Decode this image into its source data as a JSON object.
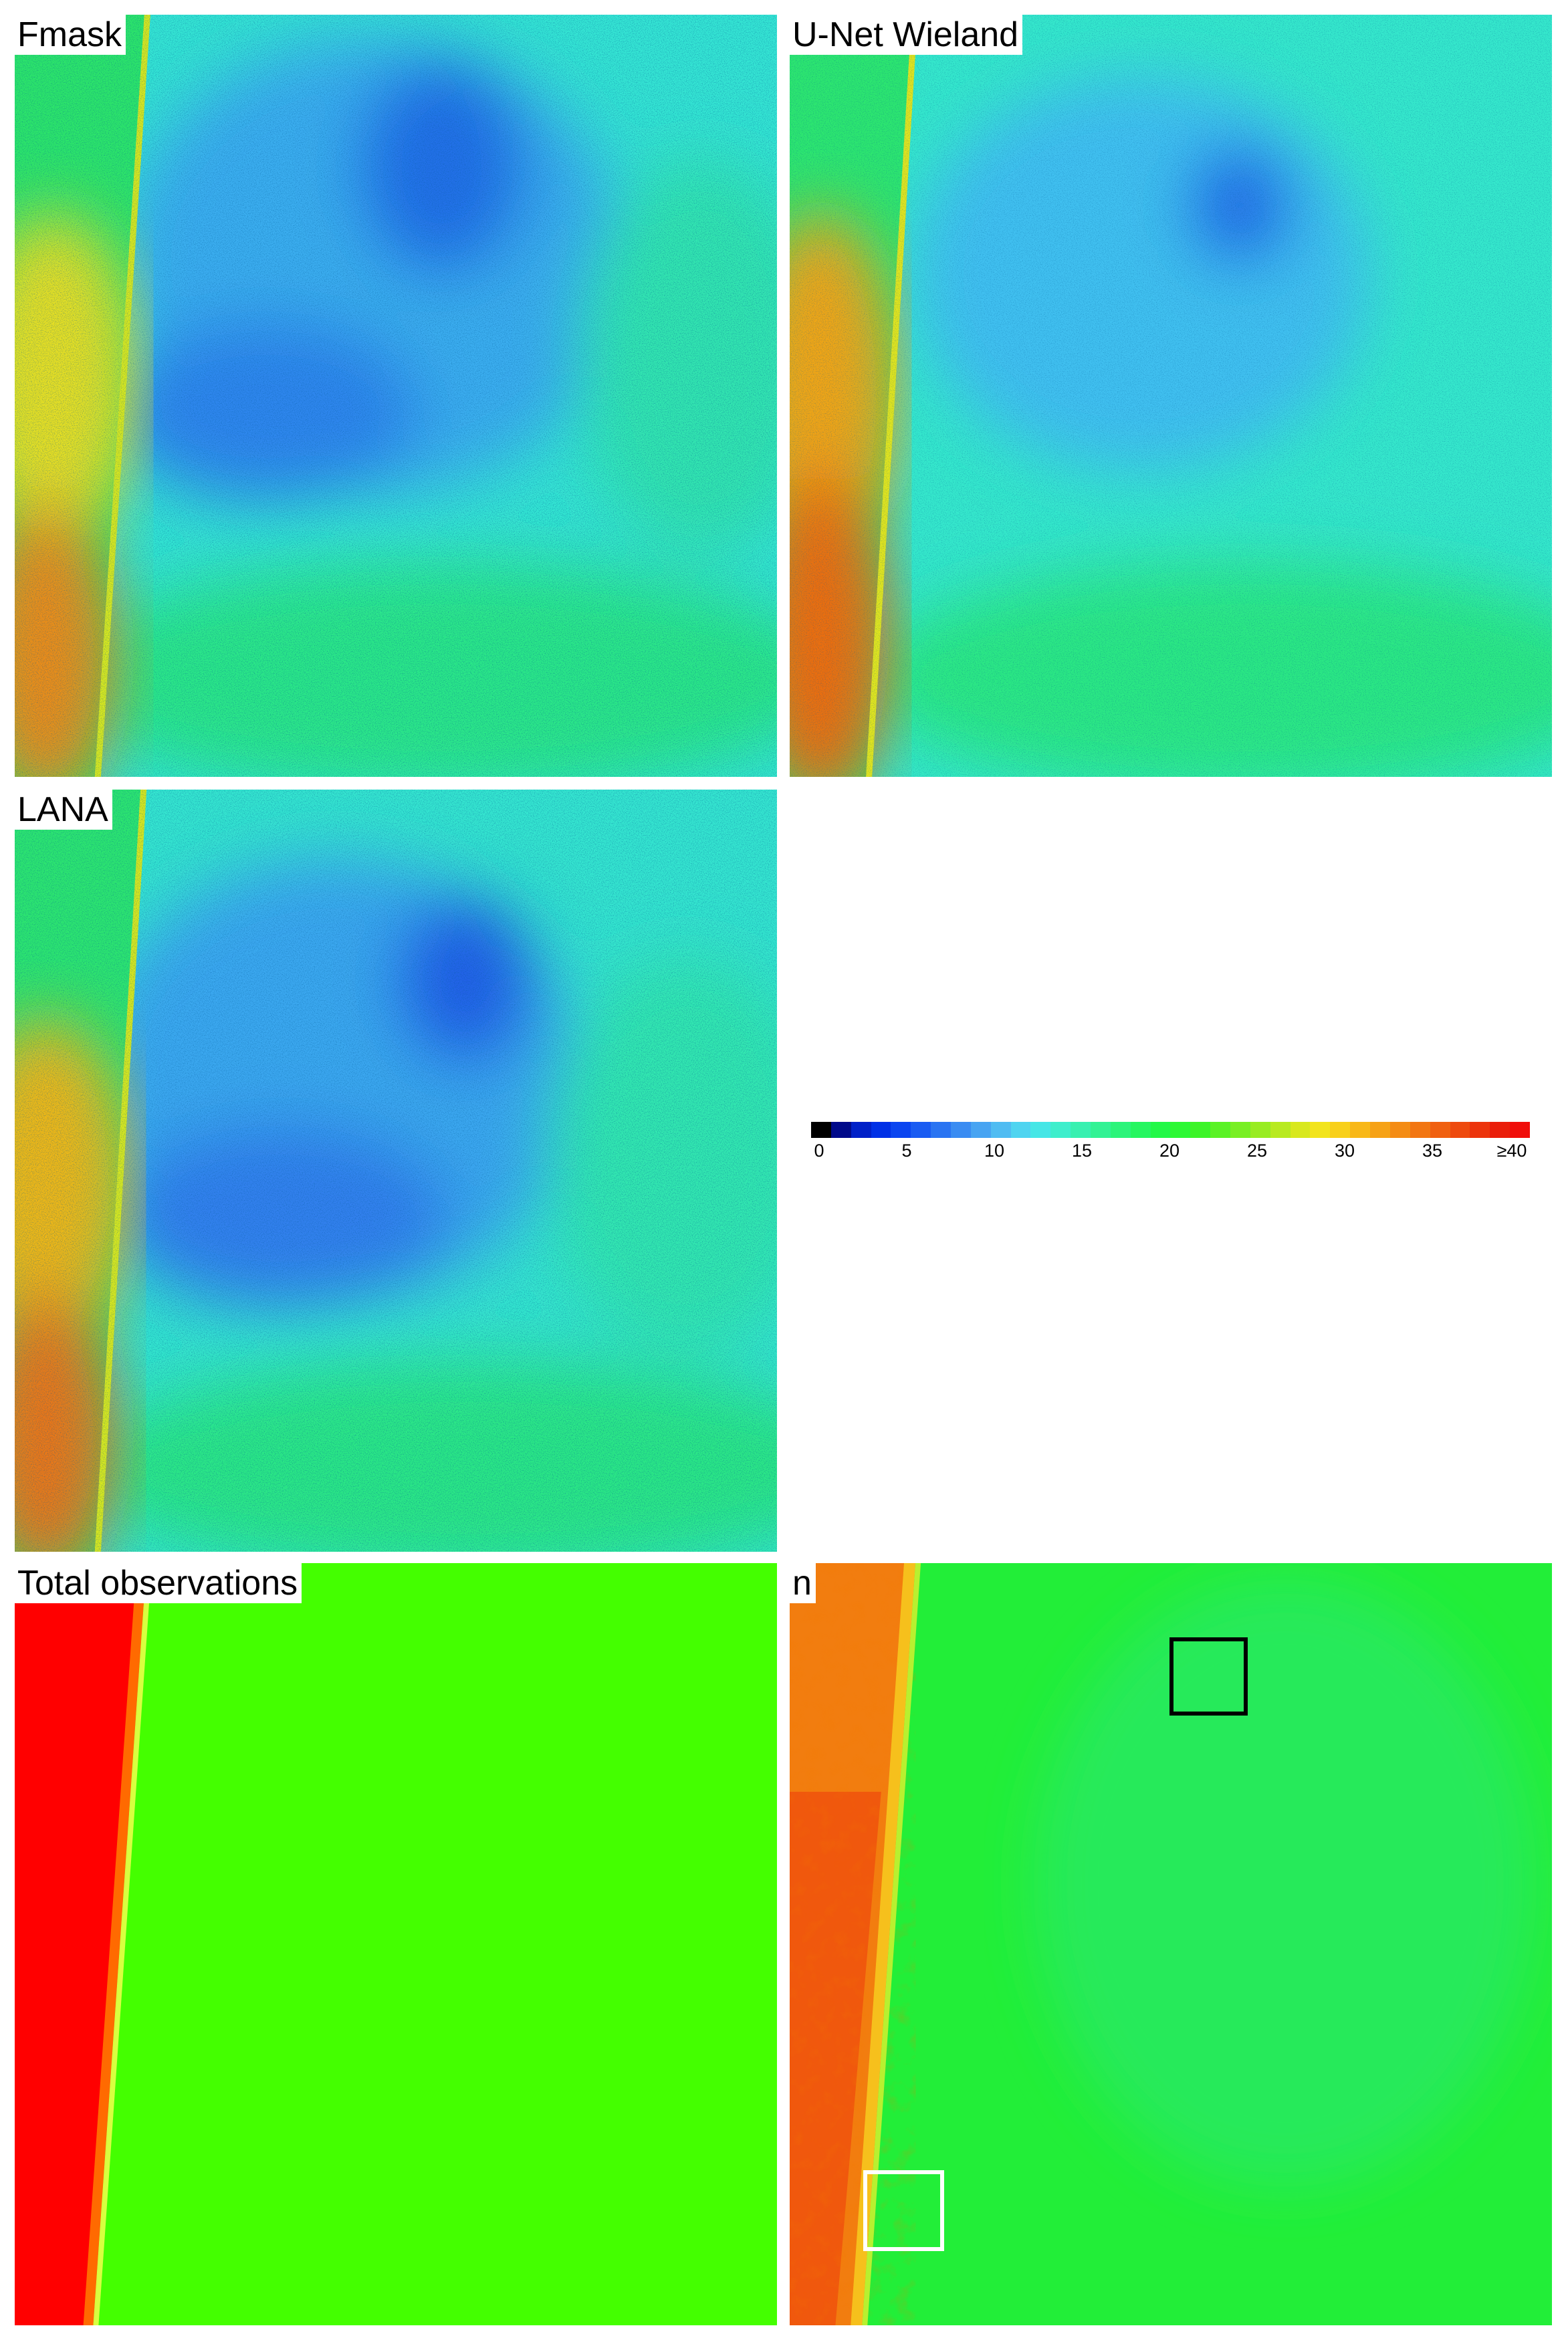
{
  "panels": {
    "fmask": {
      "label": "Fmask"
    },
    "unet": {
      "label": "U-Net Wieland"
    },
    "lana": {
      "label": "LANA"
    },
    "total": {
      "label": "Total observations"
    },
    "n": {
      "label": "n"
    }
  },
  "colorbar": {
    "tick_labels": [
      "0",
      "5",
      "10",
      "15",
      "20",
      "25",
      "30",
      "35",
      "≥40"
    ],
    "colors": [
      "#000000",
      "#000a8a",
      "#0020c8",
      "#0030e6",
      "#0b45f0",
      "#1a5cf2",
      "#2a74f2",
      "#3a8cf2",
      "#48a4f2",
      "#50bcf2",
      "#4fd4f0",
      "#46e6e6",
      "#3eeecc",
      "#38f0b0",
      "#32f294",
      "#2cf47a",
      "#26f660",
      "#22f848",
      "#2cf834",
      "#3cf428",
      "#5af226",
      "#78ef24",
      "#98ec22",
      "#b8ea20",
      "#d8e81e",
      "#f2e41c",
      "#f8d01a",
      "#f8b818",
      "#f6a216",
      "#f48c14",
      "#f27612",
      "#f06010",
      "#ee4a0e",
      "#ec340c",
      "#ea1e0a",
      "#f00e0a"
    ],
    "range": [
      0,
      40
    ]
  },
  "colors": {
    "dark_blue": "#1f60e8",
    "cyan": "#2ee0d0",
    "green": "#28ee40",
    "orange": "#f07a12",
    "red": "#ff0000",
    "total_green": "#44ff00",
    "box_black": "#000000",
    "box_white": "#ffffff"
  }
}
